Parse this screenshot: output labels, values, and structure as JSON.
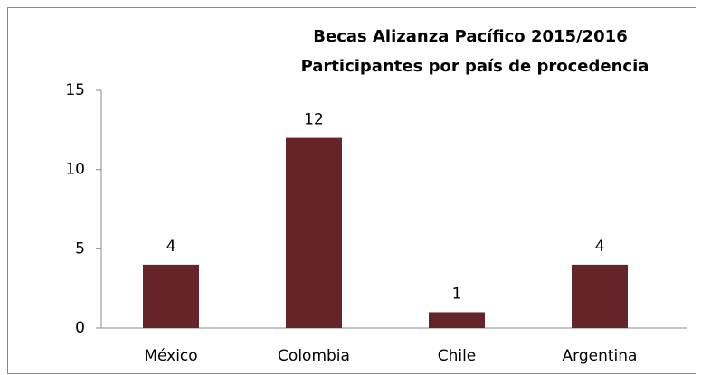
{
  "chart_data": {
    "type": "bar",
    "title": "Becas Alizanza Pacífico 2015/2016",
    "subtitle": "Participantes por país de procedencia",
    "categories": [
      "México",
      "Colombia",
      "Chile",
      "Argentina"
    ],
    "values": [
      4,
      12,
      1,
      4
    ],
    "color": "#652427",
    "ylim": [
      0,
      15
    ],
    "yticks": [
      0,
      5,
      10,
      15
    ],
    "grid": false,
    "data_labels": true
  }
}
